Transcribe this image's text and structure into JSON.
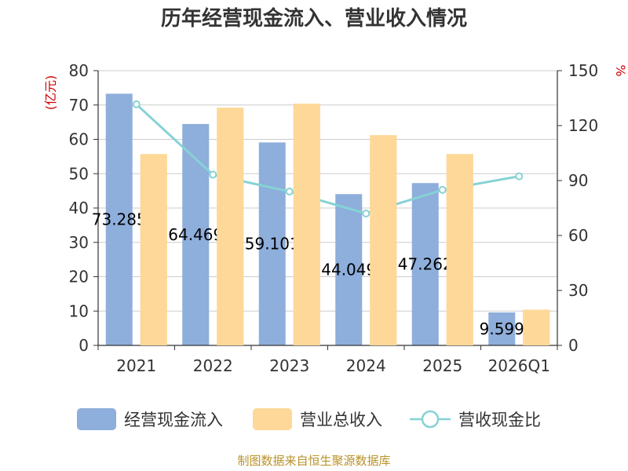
{
  "chart_data": {
    "type": "bar",
    "title": "历年经营现金流入、营业收入情况",
    "categories": [
      "2021",
      "2022",
      "2023",
      "2024",
      "2025",
      "2026Q1"
    ],
    "y_left": {
      "unit_label": "(亿元)",
      "ylim": [
        0,
        80
      ],
      "ticks": [
        0,
        10,
        20,
        30,
        40,
        50,
        60,
        70,
        80
      ]
    },
    "y_right": {
      "unit_label": "%",
      "ylim": [
        0,
        150
      ],
      "ticks": [
        0,
        30,
        60,
        90,
        120,
        150
      ]
    },
    "grid": true,
    "legend_position": "bottom",
    "series": [
      {
        "name": "经营现金流入",
        "type": "bar",
        "axis": "left",
        "color": "#8eaedb",
        "values": [
          73.285,
          64.469,
          59.101,
          44.049,
          47.262,
          9.599
        ],
        "labels": [
          "73.285",
          "64.469",
          "59.101",
          "44.049",
          "47.262",
          "9.599"
        ]
      },
      {
        "name": "营业总收入",
        "type": "bar",
        "axis": "left",
        "color": "#fdd898",
        "values": [
          55.7,
          69.2,
          70.4,
          61.2,
          55.7,
          10.4
        ]
      },
      {
        "name": "营收现金比",
        "type": "line",
        "axis": "right",
        "color": "#86d2d6",
        "values": [
          131.6,
          93.2,
          84.0,
          72.0,
          84.9,
          92.3
        ]
      }
    ]
  },
  "source": "制图数据来自恒生聚源数据库"
}
